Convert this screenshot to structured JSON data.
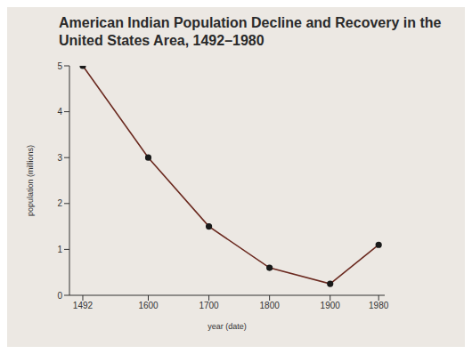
{
  "chart_data": {
    "type": "line",
    "title": "American Indian Population Decline and Recovery in the United States Area, 1492–1980",
    "x_label": "year (date)",
    "y_label": "population (millions)",
    "x": [
      1492,
      1600,
      1700,
      1800,
      1900,
      1980
    ],
    "values": [
      5,
      3,
      1.5,
      0.6,
      0.25,
      1.1
    ],
    "color": "#6b2a20",
    "marker": "circle",
    "xlim": [
      1470,
      1990
    ],
    "xticks": [
      1492,
      1600,
      1700,
      1800,
      1900,
      1980
    ],
    "ylim": [
      0,
      5
    ],
    "yticks": [
      0,
      1,
      2,
      3,
      4,
      5
    ],
    "grid": false
  }
}
